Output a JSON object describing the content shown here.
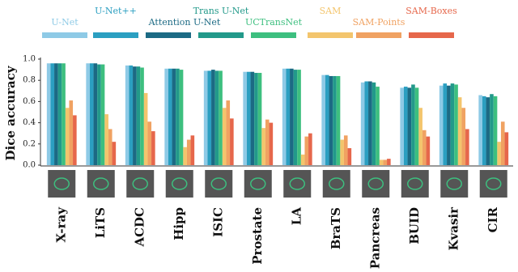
{
  "chart_data": {
    "type": "bar",
    "ylabel": "Dice accuracy",
    "categories": [
      "X-ray",
      "LiTS",
      "ACDC",
      "Hipp",
      "ISIC",
      "Prostate",
      "LA",
      "BraTS",
      "Pancreas",
      "BUID",
      "Kvasir",
      "CIR"
    ],
    "series": [
      {
        "name": "U-Net",
        "color": "#8ecae6",
        "values": [
          0.96,
          0.96,
          0.94,
          0.91,
          0.89,
          0.88,
          0.91,
          0.85,
          0.78,
          0.73,
          0.75,
          0.66
        ]
      },
      {
        "name": "U-Net++",
        "color": "#2b9fc1",
        "values": [
          0.96,
          0.96,
          0.94,
          0.91,
          0.89,
          0.88,
          0.91,
          0.85,
          0.79,
          0.74,
          0.77,
          0.65
        ]
      },
      {
        "name": "Attention U-Net",
        "color": "#1c6a84",
        "values": [
          0.96,
          0.96,
          0.93,
          0.91,
          0.9,
          0.88,
          0.91,
          0.84,
          0.79,
          0.73,
          0.75,
          0.64
        ]
      },
      {
        "name": "Trans U-Net",
        "color": "#22998a",
        "values": [
          0.96,
          0.95,
          0.93,
          0.91,
          0.89,
          0.87,
          0.9,
          0.84,
          0.78,
          0.76,
          0.77,
          0.67
        ]
      },
      {
        "name": "UCTransNet",
        "color": "#3dbf7f",
        "values": [
          0.96,
          0.95,
          0.92,
          0.9,
          0.89,
          0.87,
          0.9,
          0.84,
          0.74,
          0.73,
          0.76,
          0.65
        ]
      },
      {
        "name": "SAM",
        "color": "#f3c56d",
        "values": [
          0.54,
          0.48,
          0.68,
          0.17,
          0.54,
          0.35,
          0.1,
          0.24,
          0.05,
          0.54,
          0.64,
          0.22
        ]
      },
      {
        "name": "SAM-Points",
        "color": "#f0a262",
        "values": [
          0.61,
          0.34,
          0.41,
          0.24,
          0.61,
          0.43,
          0.27,
          0.28,
          0.05,
          0.33,
          0.54,
          0.41
        ]
      },
      {
        "name": "SAM-Boxes",
        "color": "#e6674b",
        "values": [
          0.47,
          0.22,
          0.32,
          0.28,
          0.44,
          0.4,
          0.3,
          0.16,
          0.06,
          0.27,
          0.34,
          0.31
        ]
      }
    ],
    "ylim": [
      0,
      1.0
    ],
    "yticks": [
      {
        "value": 0,
        "label": "0.0"
      },
      {
        "value": 0.2,
        "label": "0.2"
      },
      {
        "value": 0.4,
        "label": "0.4"
      },
      {
        "value": 0.6,
        "label": "0.6"
      },
      {
        "value": 0.8,
        "label": "0.8"
      },
      {
        "value": 1.0,
        "label": "1.0"
      }
    ],
    "legend": "top"
  }
}
